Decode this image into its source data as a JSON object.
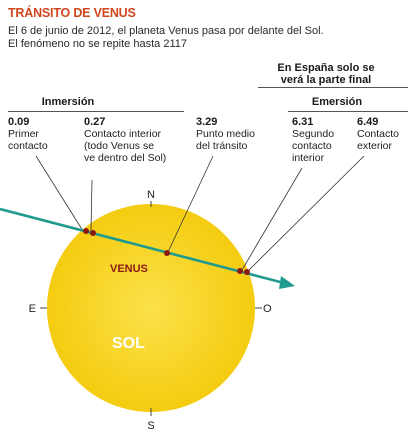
{
  "header": {
    "title": "TRÁNSITO DE VENUS",
    "subtitle_1": "El 6 de junio de 2012, el planeta Venus pasa por delante del Sol.",
    "subtitle_2": "El fenómeno no se repite hasta 2117"
  },
  "note": {
    "line_1": "En España solo se",
    "line_2": "verá la parte final"
  },
  "groups": {
    "inmersion": "Inmersión",
    "emersion": "Emersión"
  },
  "events": [
    {
      "time": "0.09",
      "desc_1": "Primer",
      "desc_2": "contacto",
      "desc_3": "",
      "desc_4": ""
    },
    {
      "time": "0.27",
      "desc_1": "Contacto interior",
      "desc_2": "(todo Venus se",
      "desc_3": "ve dentro del Sol)",
      "desc_4": ""
    },
    {
      "time": "3.29",
      "desc_1": "Punto medio",
      "desc_2": "del tránsito",
      "desc_3": "",
      "desc_4": ""
    },
    {
      "time": "6.31",
      "desc_1": "Segundo",
      "desc_2": "contacto",
      "desc_3": "interior",
      "desc_4": ""
    },
    {
      "time": "6.49",
      "desc_1": "Contacto",
      "desc_2": "exterior",
      "desc_3": "",
      "desc_4": ""
    }
  ],
  "diagram": {
    "sun_label": "SOL",
    "venus_label": "VENUS",
    "compass_n": "N",
    "compass_s": "S",
    "compass_e": "E",
    "compass_o": "O",
    "colors": {
      "sun": "#f7d216",
      "path": "#1f9a8e",
      "venus": "#8a1a14",
      "title": "#d0461d"
    }
  }
}
